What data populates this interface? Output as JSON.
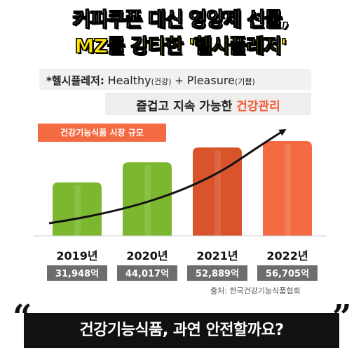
{
  "headline": {
    "line1": "커피쿠폰 대신 영양제 선물,",
    "line2": "MZ를 강타한 '헬시플레저'"
  },
  "definition": {
    "label": "*헬시플레저:",
    "healthy": "Healthy",
    "healthy_ko": "(건강)",
    "plus": "+",
    "pleasure": "Pleasure",
    "pleasure_ko": "(기쁨)"
  },
  "subtitle": {
    "text": "즐겁고 지속 가능한",
    "accent": "건강관리"
  },
  "chart_data": {
    "type": "bar",
    "title": "건강기능식품 시장 규모",
    "categories": [
      "2019년",
      "2020년",
      "2021년",
      "2022년"
    ],
    "values": [
      31948,
      44017,
      52889,
      56705
    ],
    "value_labels": [
      "31,948억",
      "44,017억",
      "52,889억",
      "56,705억"
    ],
    "xlabel": "",
    "ylabel": "",
    "grid": false,
    "legend": "none",
    "colors": [
      "#7cb82f",
      "#7cb82f",
      "#d9532b",
      "#f46a43"
    ]
  },
  "source": "출처: 한국건강기능식품협회",
  "bottom": {
    "open_quote": "“",
    "text": "건강기능식품, 과연 안전할까요?",
    "close_quote": "”"
  },
  "trend_arrow_icon": "trend-arrow-icon"
}
